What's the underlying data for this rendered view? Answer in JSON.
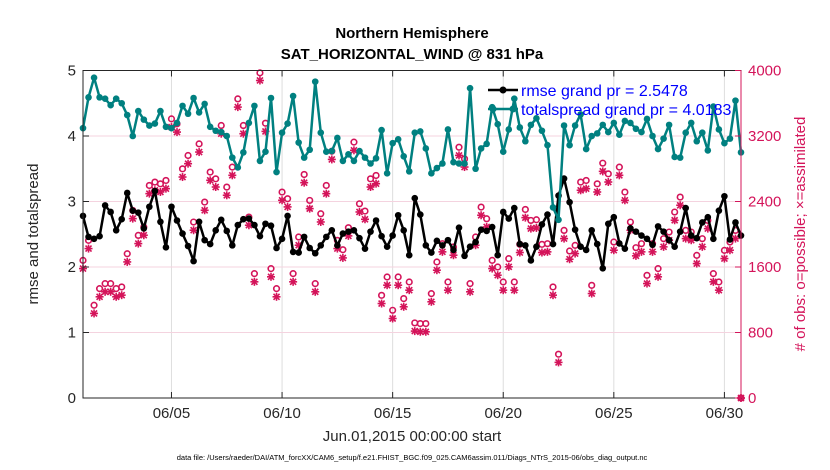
{
  "chart_data": {
    "type": "line",
    "title": "Northern Hemisphere",
    "subtitle": "SAT_HORIZONTAL_WIND @ 831 hPa",
    "xlabel": "Jun.01,2015 00:00:00 start",
    "ylabel": "rmse and totalspread",
    "ylabel_right": "# of obs: o=possible; ×=assimilated",
    "footer": "data file: /Users/raeder/DAI/ATM_forcXX/CAM6_setup/f.e21.FHIST_BGC.f09_025.CAM6assim.011/Diags_NTrS_2015-06/obs_diag_output.nc",
    "x_units": "day of June 2015",
    "x_start": 1.0,
    "x_step": 0.25,
    "xlim": [
      1.0,
      30.75
    ],
    "xticks": [
      5,
      10,
      15,
      20,
      25,
      30
    ],
    "xtick_labels": [
      "06/05",
      "06/10",
      "06/15",
      "06/20",
      "06/25",
      "06/30"
    ],
    "ylim": [
      0,
      5
    ],
    "yticks": [
      "0",
      "1",
      "2",
      "3",
      "4",
      "5"
    ],
    "ylim_right": [
      0,
      4000
    ],
    "yticks_right": [
      "0",
      "800",
      "1600",
      "2400",
      "3200",
      "4000"
    ],
    "grid": true,
    "legend_position": "top-right",
    "legend": [
      "rmse grand pr = 2.5478",
      "totalspread grand pr = 4.0183"
    ],
    "colors": {
      "rmse": "#000000",
      "totalspread": "#008080",
      "obs": "#d4145a",
      "legend_text": "#0000ff"
    },
    "series": [
      {
        "name": "rmse",
        "axis": "left",
        "values": [
          2.78,
          2.46,
          2.43,
          2.47,
          2.94,
          2.84,
          2.56,
          2.73,
          3.13,
          2.86,
          2.83,
          2.59,
          2.92,
          3.16,
          2.69,
          2.3,
          2.92,
          2.71,
          2.51,
          2.32,
          2.09,
          2.69,
          2.41,
          2.35,
          2.56,
          2.72,
          2.55,
          2.33,
          2.64,
          2.73,
          2.74,
          2.64,
          2.47,
          2.66,
          2.63,
          2.29,
          2.43,
          2.78,
          2.23,
          2.22,
          2.46,
          2.29,
          2.21,
          2.33,
          2.46,
          2.56,
          2.33,
          2.51,
          2.54,
          2.56,
          2.44,
          2.28,
          2.54,
          2.71,
          2.47,
          2.31,
          2.48,
          2.79,
          2.56,
          2.18,
          3.05,
          2.8,
          2.33,
          2.22,
          2.4,
          2.33,
          2.41,
          2.26,
          2.6,
          2.17,
          2.31,
          2.38,
          2.57,
          2.55,
          2.61,
          2.18,
          2.84,
          2.74,
          2.9,
          2.35,
          2.33,
          2.1,
          2.31,
          2.65,
          2.8,
          2.35,
          3.09,
          3.35,
          2.99,
          2.57,
          2.31,
          2.26,
          2.56,
          2.35,
          1.98,
          2.66,
          2.76,
          2.36,
          2.28,
          2.59,
          2.54,
          2.48,
          2.43,
          2.34,
          2.62,
          2.54,
          2.41,
          2.31,
          2.54,
          2.9,
          2.48,
          2.44,
          2.68,
          2.76,
          2.43,
          2.86,
          3.08,
          2.42,
          2.68,
          2.48
        ]
      },
      {
        "name": "totalspread",
        "axis": "left",
        "values": [
          4.12,
          4.59,
          4.89,
          4.59,
          4.57,
          4.47,
          4.57,
          4.5,
          4.32,
          4.0,
          4.38,
          4.25,
          4.16,
          4.19,
          4.38,
          4.14,
          4.12,
          4.2,
          4.46,
          4.34,
          4.58,
          4.36,
          4.49,
          4.14,
          4.08,
          4.06,
          4.0,
          3.67,
          3.52,
          3.75,
          4.2,
          4.46,
          3.62,
          3.76,
          4.58,
          3.45,
          4.05,
          4.19,
          4.61,
          3.9,
          3.67,
          3.79,
          4.83,
          4.05,
          3.76,
          3.77,
          3.97,
          3.62,
          3.72,
          3.62,
          3.77,
          3.67,
          3.58,
          3.66,
          4.09,
          3.43,
          3.89,
          3.95,
          3.69,
          3.46,
          4.05,
          4.07,
          3.81,
          3.43,
          3.51,
          3.58,
          4.1,
          3.6,
          3.58,
          3.58,
          4.73,
          3.5,
          3.81,
          3.88,
          4.44,
          4.18,
          3.76,
          4.1,
          4.57,
          4.13,
          3.92,
          4.17,
          4.27,
          4.08,
          3.86,
          2.91,
          2.72,
          4.16,
          3.86,
          4.16,
          4.33,
          3.8,
          4.0,
          4.04,
          4.17,
          4.06,
          4.2,
          4.02,
          4.23,
          4.2,
          4.11,
          4.06,
          4.26,
          4.0,
          3.8,
          3.96,
          4.17,
          3.68,
          3.67,
          4.05,
          4.2,
          3.92,
          4.05,
          3.78,
          4.45,
          4.1,
          3.89,
          3.96,
          4.54,
          3.75
        ]
      },
      {
        "name": "obs possible",
        "axis": "right",
        "marker": "o",
        "values": [
          1681,
          1925,
          1133,
          1336,
          1397,
          1397,
          1336,
          1356,
          1762,
          2291,
          1986,
          2088,
          2596,
          2637,
          2616,
          2657,
          3409,
          3348,
          2799,
          2962,
          2149,
          3104,
          2393,
          2759,
          2677,
          3328,
          2576,
          2820,
          3653,
          3328,
          2210,
          1519,
          3971,
          3356,
          1580,
          1336,
          2515,
          2434,
          1519,
          1966,
          2730,
          2413,
          1397,
          2250,
          2596,
          3014,
          1925,
          1811,
          2080,
          3125,
          2372,
          2283,
          2677,
          2718,
          1254,
          1478,
          1071,
          1478,
          1214,
          1417,
          917,
          909,
          909,
          1275,
          1661,
          1885,
          1417,
          1844,
          3063,
          2921,
          1397,
          1966,
          2332,
          2189,
          1681,
          1600,
          1417,
          1702,
          1417,
          1877,
          2303,
          2169,
          2177,
          1877,
          1885,
          1356,
          535,
          2047,
          1795,
          1864,
          2637,
          2657,
          1376,
          2616,
          2868,
          2738,
          1905,
          2820,
          2515,
          2149,
          1836,
          1885,
          1498,
          1885,
          1580,
          1946,
          2027,
          2271,
          2454,
          2047,
          2027,
          1742,
          1946,
          2169,
          1519,
          1417,
          1803,
          1905,
          2047,
          0
        ]
      },
      {
        "name": "obs assimilated",
        "axis": "right",
        "marker": "*",
        "values": [
          1581,
          1825,
          1033,
          1236,
          1297,
          1297,
          1236,
          1256,
          1662,
          2191,
          1886,
          1988,
          2496,
          2537,
          2516,
          2557,
          3309,
          3248,
          2699,
          2862,
          2049,
          3004,
          2293,
          2659,
          2577,
          3228,
          2476,
          2720,
          3553,
          3228,
          2110,
          1419,
          3878,
          3256,
          1480,
          1236,
          2415,
          2334,
          1419,
          1866,
          2630,
          2313,
          1297,
          2150,
          2496,
          2914,
          1825,
          1711,
          1980,
          3025,
          2272,
          2183,
          2577,
          2618,
          1154,
          1378,
          971,
          1378,
          1114,
          1317,
          817,
          809,
          809,
          1175,
          1561,
          1785,
          1317,
          1744,
          2963,
          2821,
          1297,
          1866,
          2232,
          2089,
          1581,
          1500,
          1317,
          1602,
          1317,
          1777,
          2203,
          2069,
          2077,
          1777,
          1785,
          1256,
          435,
          1947,
          1695,
          1764,
          2537,
          2557,
          1276,
          2516,
          2768,
          2638,
          1805,
          2720,
          2415,
          2049,
          1736,
          1785,
          1398,
          1785,
          1480,
          1846,
          1927,
          2171,
          2354,
          1947,
          1927,
          1642,
          1846,
          2069,
          1419,
          1317,
          1703,
          1805,
          1947,
          0
        ]
      }
    ]
  }
}
